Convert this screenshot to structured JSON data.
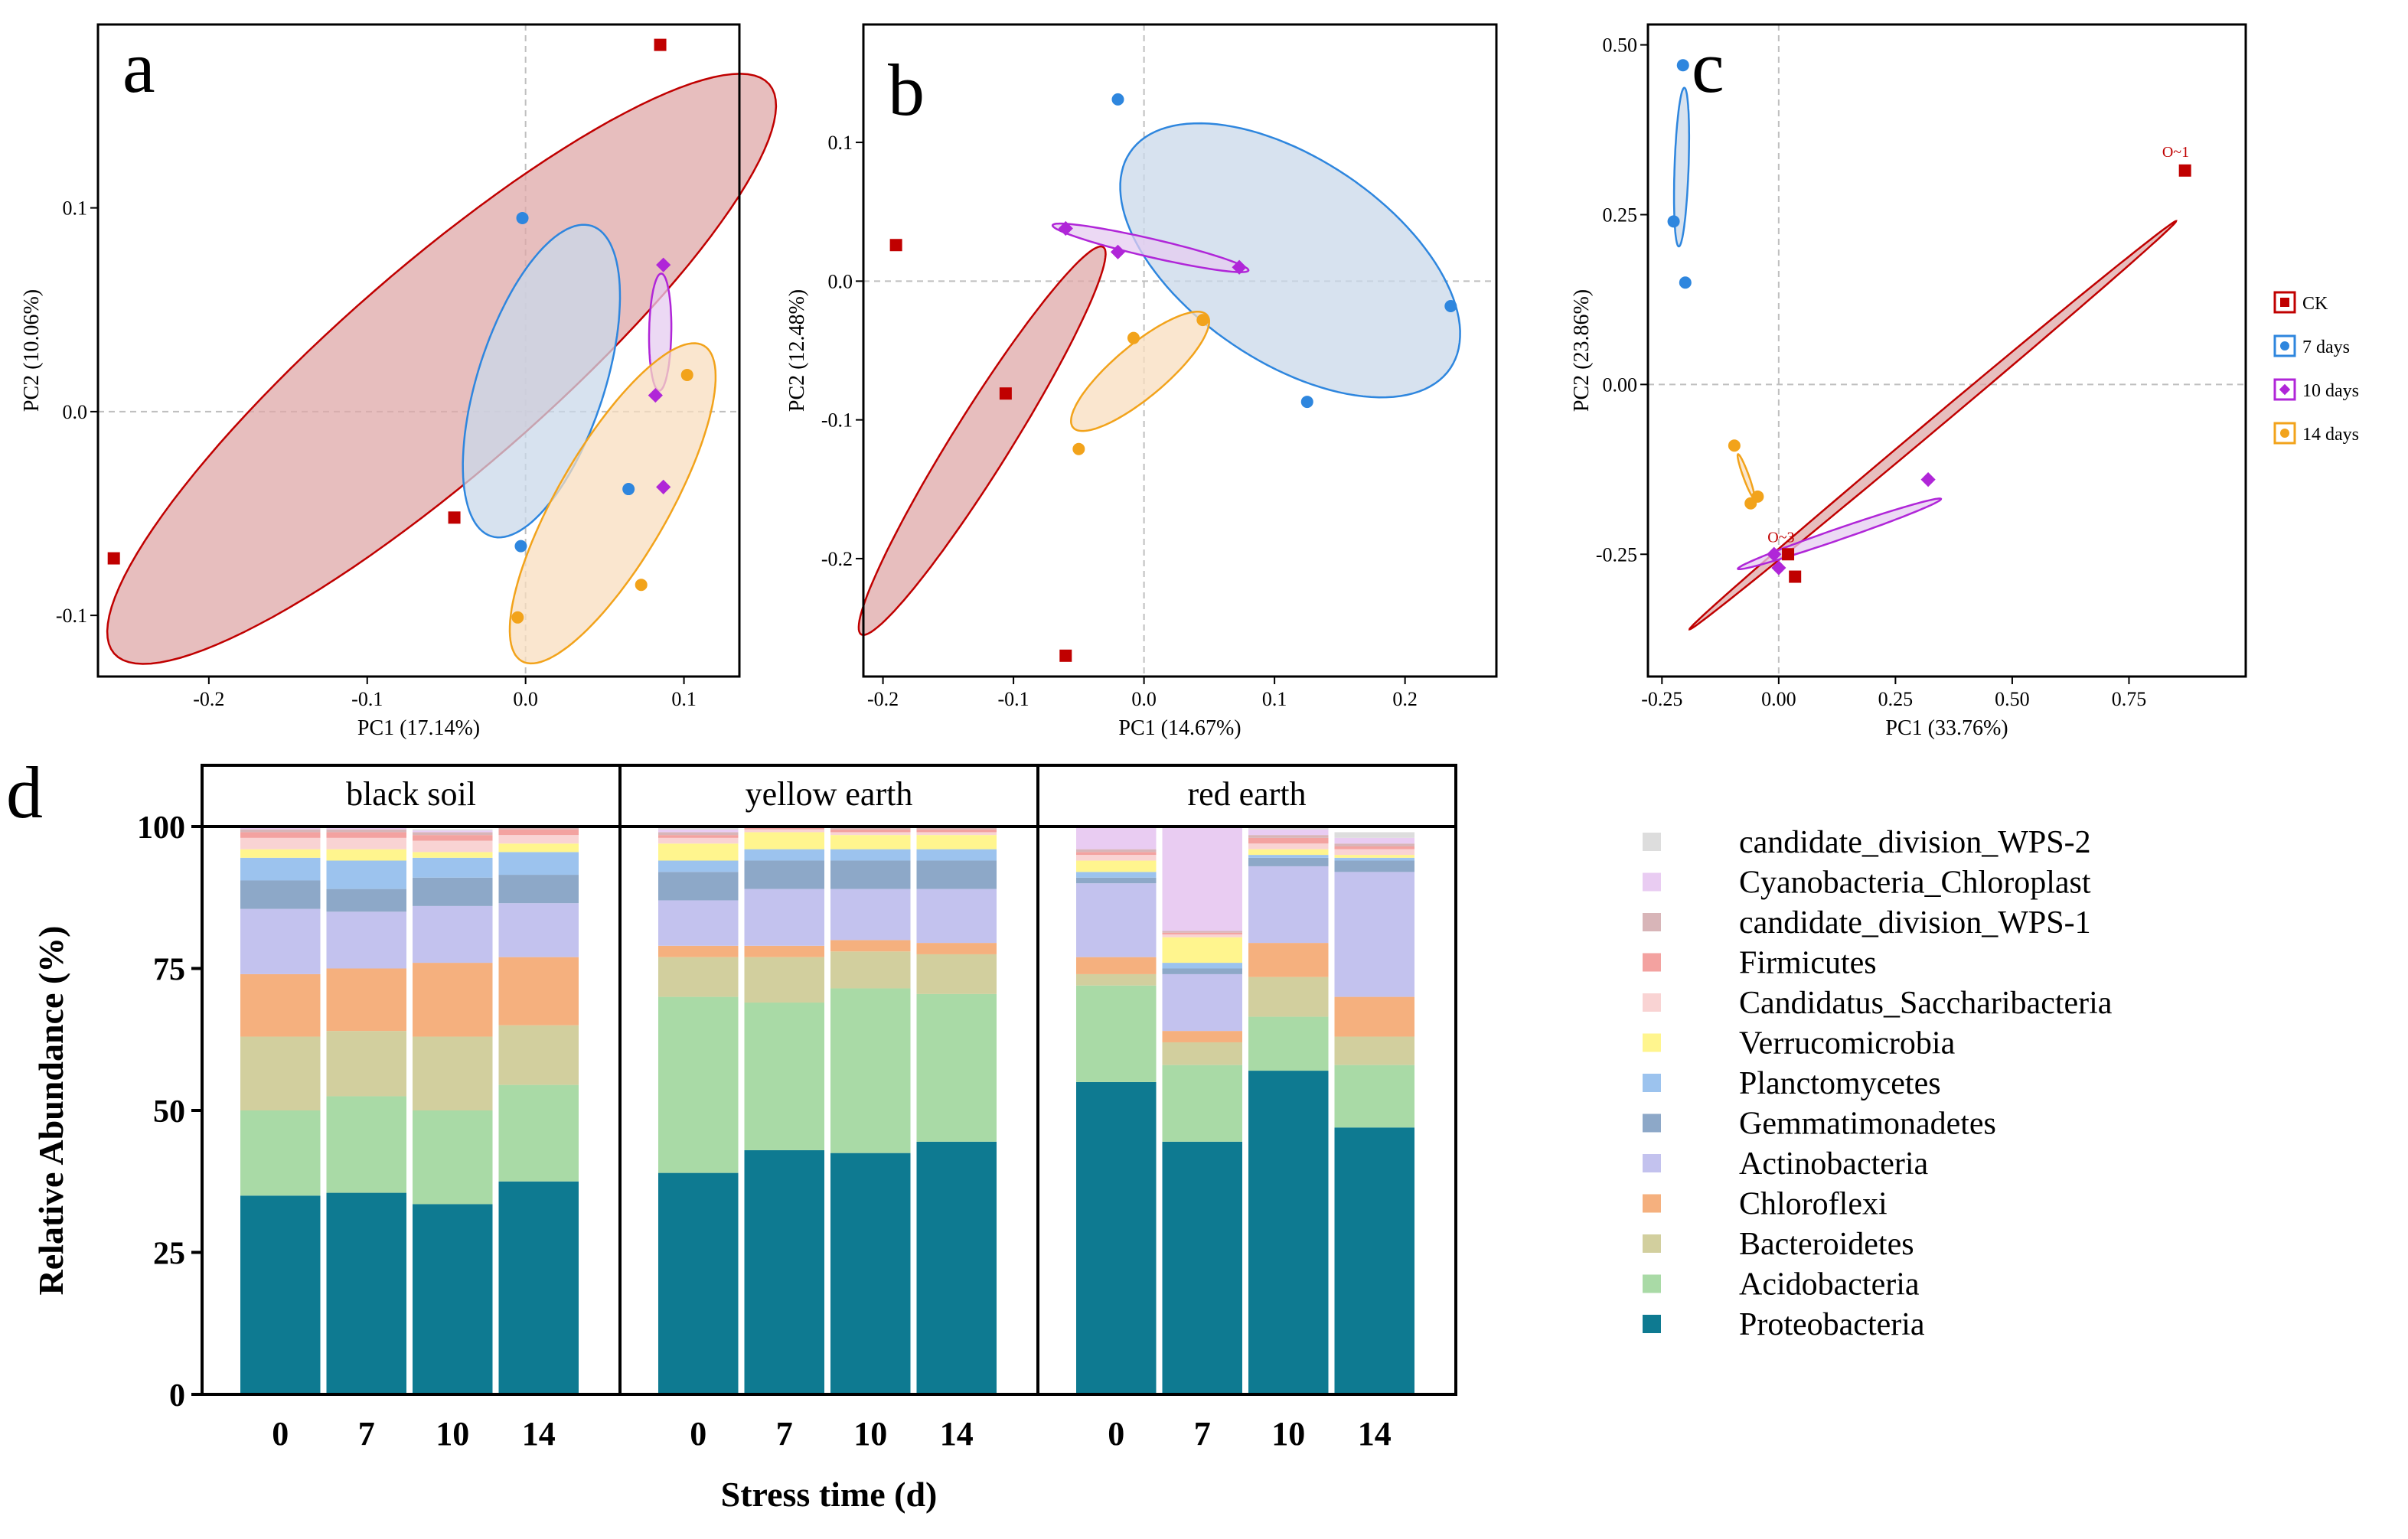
{
  "colors": {
    "ck": "#C00000",
    "d7": "#2E86DE",
    "d10": "#B026D8",
    "d14": "#F2A31B",
    "ck_fill": "#DFA8A8",
    "d7_fill": "#C9D8EA",
    "d10_fill": "#E6CCF0",
    "d14_fill": "#F8DDBF",
    "ref_line": "#BFBFBF"
  },
  "chart_data": [
    {
      "id": "a",
      "type": "scatter",
      "panel_label": "a",
      "xlabel": "PC1 (17.14%)",
      "ylabel": "PC2 (10.06%)",
      "xlim": [
        -0.27,
        0.135
      ],
      "ylim": [
        -0.13,
        0.19
      ],
      "xticks": [
        -0.2,
        -0.1,
        0.0,
        0.1
      ],
      "xtick_labels": [
        "-0.2",
        "-0.1",
        "0.0",
        "0.1"
      ],
      "yticks": [
        -0.1,
        0.0,
        0.1
      ],
      "ytick_labels": [
        "-0.1",
        "0.0",
        "0.1"
      ],
      "series": [
        {
          "group": "ck",
          "marker": "square",
          "points": [
            [
              0.085,
              0.18
            ],
            [
              -0.26,
              -0.072
            ],
            [
              -0.045,
              -0.052
            ]
          ],
          "ellipse": {
            "cx": -0.053,
            "cy": 0.021,
            "rx": 0.274,
            "ry": 0.065,
            "angle": 41
          }
        },
        {
          "group": "d7",
          "marker": "circle",
          "points": [
            [
              -0.002,
              0.095
            ],
            [
              -0.003,
              -0.066
            ],
            [
              0.065,
              -0.038
            ]
          ],
          "ellipse": {
            "cx": 0.01,
            "cy": 0.015,
            "rx": 0.103,
            "ry": 0.04,
            "angle": 72
          }
        },
        {
          "group": "d10",
          "marker": "diamond",
          "points": [
            [
              0.087,
              0.072
            ],
            [
              0.082,
              0.008
            ],
            [
              0.087,
              -0.037
            ]
          ],
          "ellipse": {
            "cx": 0.085,
            "cy": 0.039,
            "rx": 0.037,
            "ry": 0.007,
            "angle": 89
          }
        },
        {
          "group": "d14",
          "marker": "circle",
          "points": [
            [
              0.102,
              0.018
            ],
            [
              0.073,
              -0.085
            ],
            [
              -0.005,
              -0.101
            ]
          ],
          "ellipse": {
            "cx": 0.055,
            "cy": -0.045,
            "rx": 0.115,
            "ry": 0.035,
            "angle": 60
          }
        }
      ]
    },
    {
      "id": "b",
      "type": "scatter",
      "panel_label": "b",
      "xlabel": "PC1 (14.67%)",
      "ylabel": "PC2 (12.48%)",
      "xlim": [
        -0.215,
        0.27
      ],
      "ylim": [
        -0.285,
        0.185
      ],
      "xticks": [
        -0.2,
        -0.1,
        0.0,
        0.1,
        0.2
      ],
      "xtick_labels": [
        "-0.2",
        "-0.1",
        "0.0",
        "0.1",
        "0.2"
      ],
      "yticks": [
        -0.2,
        -0.1,
        0.0,
        0.1
      ],
      "ytick_labels": [
        "-0.2",
        "-0.1",
        "0.0",
        "0.1"
      ],
      "series": [
        {
          "group": "ck",
          "marker": "square",
          "points": [
            [
              -0.19,
              0.026
            ],
            [
              -0.106,
              -0.081
            ],
            [
              -0.06,
              -0.27
            ]
          ],
          "ellipse": {
            "cx": -0.124,
            "cy": -0.115,
            "rx": 0.175,
            "ry": 0.022,
            "angle": 58
          }
        },
        {
          "group": "d7",
          "marker": "circle",
          "points": [
            [
              -0.02,
              0.131
            ],
            [
              0.235,
              -0.018
            ],
            [
              0.125,
              -0.087
            ]
          ],
          "ellipse": {
            "cx": 0.112,
            "cy": 0.015,
            "rx": 0.148,
            "ry": 0.078,
            "angle": -34
          }
        },
        {
          "group": "d10",
          "marker": "diamond",
          "points": [
            [
              -0.06,
              0.038
            ],
            [
              -0.02,
              0.021
            ],
            [
              0.073,
              0.01
            ]
          ],
          "ellipse": {
            "cx": 0.005,
            "cy": 0.024,
            "rx": 0.077,
            "ry": 0.007,
            "angle": -13
          }
        },
        {
          "group": "d14",
          "marker": "circle",
          "points": [
            [
              -0.05,
              -0.121
            ],
            [
              -0.008,
              -0.041
            ],
            [
              0.045,
              -0.028
            ]
          ],
          "ellipse": {
            "cx": -0.003,
            "cy": -0.065,
            "rx": 0.067,
            "ry": 0.02,
            "angle": 40
          }
        }
      ]
    },
    {
      "id": "c",
      "type": "scatter",
      "panel_label": "c",
      "xlabel": "PC1 (33.76%)",
      "ylabel": "PC2 (23.86%)",
      "xlim": [
        -0.28,
        1.0
      ],
      "ylim": [
        -0.43,
        0.53
      ],
      "xticks": [
        -0.25,
        0.0,
        0.25,
        0.5,
        0.75
      ],
      "xtick_labels": [
        "-0.25",
        "0.00",
        "0.25",
        "0.50",
        "0.75"
      ],
      "yticks": [
        -0.25,
        0.0,
        0.25,
        0.5
      ],
      "ytick_labels": [
        "-0.25",
        "0.00",
        "0.25",
        "0.50"
      ],
      "legend_position": "right",
      "point_labels": [
        {
          "text": "O~1",
          "x": 0.85,
          "y": 0.335
        },
        {
          "text": "O~3",
          "x": 0.005,
          "y": -0.232
        }
      ],
      "series": [
        {
          "group": "ck",
          "marker": "square",
          "points": [
            [
              0.87,
              0.315
            ],
            [
              0.02,
              -0.25
            ],
            [
              0.035,
              -0.283
            ]
          ],
          "ellipse": {
            "cx": 0.33,
            "cy": -0.06,
            "rx": 0.68,
            "ry": 0.012,
            "angle": 40
          }
        },
        {
          "group": "d7",
          "marker": "circle",
          "points": [
            [
              -0.205,
              0.47
            ],
            [
              -0.225,
              0.24
            ],
            [
              -0.2,
              0.15
            ]
          ],
          "ellipse": {
            "cx": -0.208,
            "cy": 0.32,
            "rx": 0.17,
            "ry": 0.015,
            "angle": 88
          }
        },
        {
          "group": "d10",
          "marker": "diamond",
          "points": [
            [
              0.32,
              -0.14
            ],
            [
              -0.01,
              -0.25
            ],
            [
              0.0,
              -0.27
            ]
          ],
          "ellipse": {
            "cx": 0.13,
            "cy": -0.22,
            "rx": 0.23,
            "ry": 0.012,
            "angle": 19
          }
        },
        {
          "group": "d14",
          "marker": "circle",
          "points": [
            [
              -0.095,
              -0.09
            ],
            [
              -0.06,
              -0.175
            ],
            [
              -0.045,
              -0.165
            ]
          ],
          "ellipse": {
            "cx": -0.07,
            "cy": -0.135,
            "rx": 0.05,
            "ry": 0.006,
            "angle": -70
          }
        }
      ]
    },
    {
      "id": "d",
      "type": "bar",
      "stacked": true,
      "panel_label": "d",
      "xlabel": "Stress time (d)",
      "ylabel": "Relative Abundance (%)",
      "ylim": [
        0,
        100
      ],
      "yticks": [
        0,
        25,
        50,
        75,
        100
      ],
      "ytick_labels": [
        "0",
        "25",
        "50",
        "75",
        "100"
      ],
      "facets": [
        "black soil",
        "yellow earth",
        "red earth"
      ],
      "categories": [
        "0",
        "7",
        "10",
        "14"
      ],
      "series": [
        {
          "name": "Proteobacteria",
          "color": "#0E7A91",
          "values": [
            [
              35,
              35.5,
              33.5,
              37.5
            ],
            [
              39,
              43,
              42.5,
              44.5
            ],
            [
              55,
              44.5,
              57,
              47
            ]
          ]
        },
        {
          "name": "Acidobacteria",
          "color": "#A9DAA6",
          "values": [
            [
              15,
              17,
              16.5,
              17
            ],
            [
              31,
              26,
              29,
              26
            ],
            [
              17,
              13.5,
              9.5,
              11
            ]
          ]
        },
        {
          "name": "Bacteroidetes",
          "color": "#D2CF9E",
          "values": [
            [
              13,
              11.5,
              13,
              10.5
            ],
            [
              7,
              8,
              6.5,
              7
            ],
            [
              2,
              4,
              7,
              5
            ]
          ]
        },
        {
          "name": "Chloroflexi",
          "color": "#F5B07E",
          "values": [
            [
              11,
              11,
              13,
              12
            ],
            [
              2,
              2,
              2,
              2
            ],
            [
              3,
              2,
              6,
              7
            ]
          ]
        },
        {
          "name": "Actinobacteria",
          "color": "#C3C2EE",
          "values": [
            [
              11.5,
              10,
              10,
              9.5
            ],
            [
              8,
              10,
              9,
              9.5
            ],
            [
              13,
              10,
              13.5,
              22
            ]
          ]
        },
        {
          "name": "Gemmatimonadetes",
          "color": "#8DA8C8",
          "values": [
            [
              5,
              4,
              5,
              5
            ],
            [
              5,
              5,
              5,
              5
            ],
            [
              1,
              1,
              1.5,
              2
            ]
          ]
        },
        {
          "name": "Planctomycetes",
          "color": "#9CC3EE",
          "values": [
            [
              4,
              5,
              3.5,
              4
            ],
            [
              2,
              2,
              2,
              2
            ],
            [
              1,
              1,
              0.5,
              0.5
            ]
          ]
        },
        {
          "name": "Verrucomicrobia",
          "color": "#FFF58E",
          "values": [
            [
              1.5,
              2,
              1,
              1.5
            ],
            [
              3,
              3,
              2.5,
              2.5
            ],
            [
              2,
              4.5,
              1,
              0.5
            ]
          ]
        },
        {
          "name": "Candidatus_Saccharibacteria",
          "color": "#F9D3D3",
          "values": [
            [
              2,
              2,
              2,
              1.5
            ],
            [
              1,
              0.5,
              0.5,
              0.5
            ],
            [
              1,
              0.5,
              1,
              1
            ]
          ]
        },
        {
          "name": "Firmicutes",
          "color": "#F3A2A0",
          "values": [
            [
              1,
              1,
              1,
              1
            ],
            [
              0.5,
              0.3,
              0.5,
              0.5
            ],
            [
              0.5,
              0.3,
              1,
              0.5
            ]
          ]
        },
        {
          "name": "candidate_division_WPS-1",
          "color": "#D8B5B8",
          "values": [
            [
              0.5,
              0.5,
              0.5,
              0.5
            ],
            [
              0.5,
              0.2,
              0.5,
              0.5
            ],
            [
              0.5,
              0.3,
              0.5,
              0.5
            ]
          ]
        },
        {
          "name": "Cyanobacteria_Chloroplast",
          "color": "#E9CCF2",
          "values": [
            [
              0.3,
              0.3,
              0.3,
              0.3
            ],
            [
              0.5,
              0.5,
              0.5,
              0.5
            ],
            [
              4,
              18.5,
              1,
              1
            ]
          ]
        },
        {
          "name": "candidate_division_WPS-2",
          "color": "#DDDDDD",
          "values": [
            [
              0.2,
              0.2,
              0.2,
              0.2
            ],
            [
              0.5,
              0.5,
              0.5,
              0.5
            ],
            [
              0.5,
              0.2,
              0.5,
              1
            ]
          ]
        }
      ]
    }
  ],
  "legend_pca": [
    {
      "group": "ck",
      "label": "CK",
      "marker": "square"
    },
    {
      "group": "d7",
      "label": "7 days",
      "marker": "circle"
    },
    {
      "group": "d10",
      "label": "10 days",
      "marker": "diamond"
    },
    {
      "group": "d14",
      "label": "14 days",
      "marker": "circle"
    }
  ]
}
